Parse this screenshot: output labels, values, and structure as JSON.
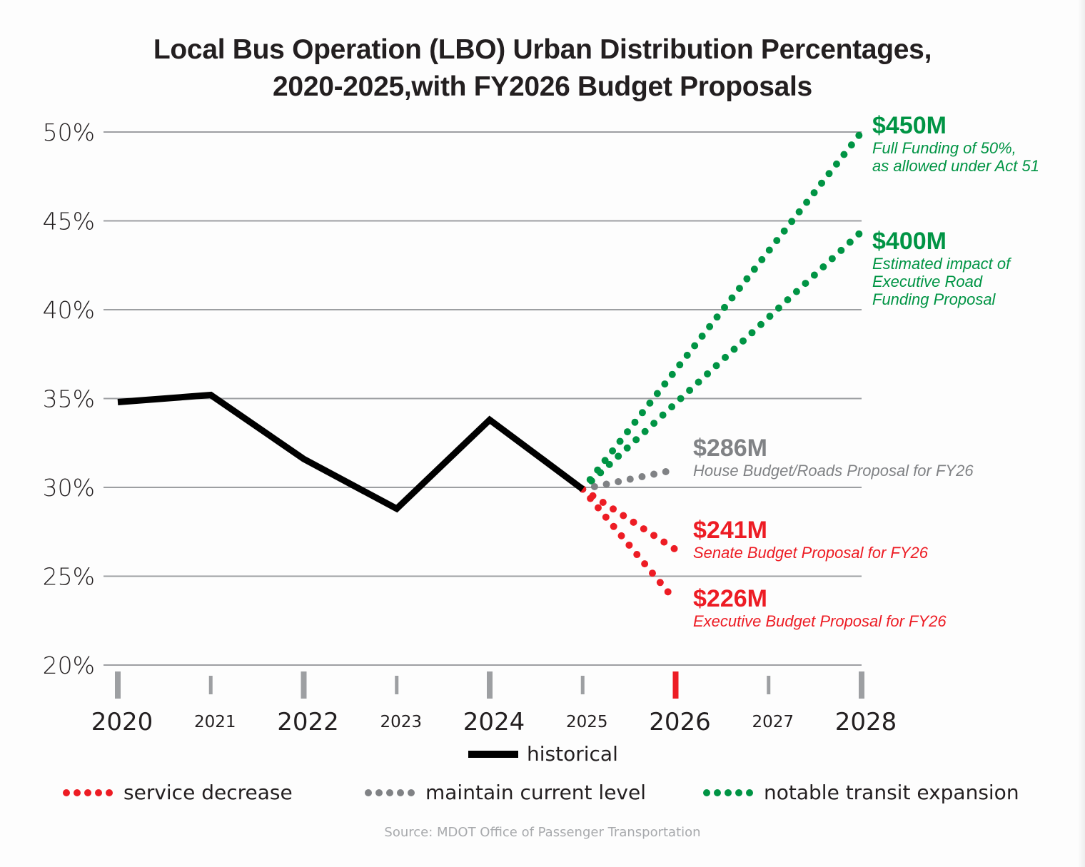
{
  "colors": {
    "historical": "#000000",
    "decrease": "#ed1c24",
    "maintain": "#808285",
    "expansion": "#009444",
    "grid": "#9d9fa2",
    "tick": "#9d9fa2",
    "tick_highlight": "#ed1c24",
    "text": "#231f20",
    "source": "#a7a9ac"
  },
  "chart_data": {
    "type": "line",
    "title": "Local Bus Operation (LBO) Urban Distribution Percentages, 2020-2025,with FY2026 Budget Proposals",
    "title_lines": [
      "Local Bus Operation (LBO) Urban Distribution Percentages,",
      "2020-2025,with FY2026 Budget Proposals"
    ],
    "xlabel": "",
    "ylabel": "",
    "xlim": [
      2020,
      2028
    ],
    "ylim": [
      20,
      50
    ],
    "grid": true,
    "y_ticks": [
      50,
      45,
      40,
      35,
      30,
      25,
      20
    ],
    "y_tick_labels": [
      "50%",
      "45%",
      "40%",
      "35%",
      "30%",
      "25%",
      "20%"
    ],
    "x_ticks": [
      {
        "value": 2020,
        "label": "2020",
        "major": true,
        "highlight": false
      },
      {
        "value": 2021,
        "label": "2021",
        "major": false,
        "highlight": false
      },
      {
        "value": 2022,
        "label": "2022",
        "major": true,
        "highlight": false
      },
      {
        "value": 2023,
        "label": "2023",
        "major": false,
        "highlight": false
      },
      {
        "value": 2024,
        "label": "2024",
        "major": true,
        "highlight": false
      },
      {
        "value": 2025,
        "label": "2025",
        "major": false,
        "highlight": false
      },
      {
        "value": 2026,
        "label": "2026",
        "major": true,
        "highlight": true
      },
      {
        "value": 2027,
        "label": "2027",
        "major": false,
        "highlight": false
      },
      {
        "value": 2028,
        "label": "2028",
        "major": true,
        "highlight": false
      }
    ],
    "series": [
      {
        "name": "historical",
        "category": "historical",
        "style": "solid",
        "x": [
          2020,
          2021,
          2022,
          2023,
          2024,
          2025
        ],
        "values": [
          34.8,
          35.2,
          31.6,
          28.8,
          33.8,
          29.9
        ]
      },
      {
        "name": "$450M",
        "category": "expansion",
        "style": "dotted",
        "x": [
          2025,
          2028
        ],
        "values": [
          29.9,
          50.0
        ],
        "label_amount": "$450M",
        "label_desc": [
          "Full Funding of 50%,",
          "as allowed under Act 51"
        ]
      },
      {
        "name": "$400M",
        "category": "expansion",
        "style": "dotted",
        "x": [
          2025,
          2028
        ],
        "values": [
          29.9,
          44.4
        ],
        "label_amount": "$400M",
        "label_desc": [
          "Estimated impact of",
          "Executive Road",
          "Funding Proposal"
        ]
      },
      {
        "name": "$286M",
        "category": "maintain",
        "style": "dotted",
        "x": [
          2025,
          2026
        ],
        "values": [
          29.9,
          31.0
        ],
        "label_amount": "$286M",
        "label_desc": [
          "House Budget/Roads Proposal for FY26"
        ]
      },
      {
        "name": "$241M",
        "category": "decrease",
        "style": "dotted",
        "x": [
          2025,
          2026
        ],
        "values": [
          29.9,
          26.5
        ],
        "label_amount": "$241M",
        "label_desc": [
          "Senate Budget Proposal for FY26"
        ]
      },
      {
        "name": "$226M",
        "category": "decrease",
        "style": "dotted",
        "x": [
          2025,
          2026
        ],
        "values": [
          29.9,
          23.6
        ],
        "label_amount": "$226M",
        "label_desc": [
          "Executive Budget Proposal for FY26"
        ]
      }
    ],
    "legend": {
      "placement": "bottom",
      "historical": "historical",
      "decrease": "service decrease",
      "maintain": "maintain current level",
      "expansion": "notable transit expansion"
    },
    "source": "Source: MDOT Office of Passenger Transportation"
  }
}
